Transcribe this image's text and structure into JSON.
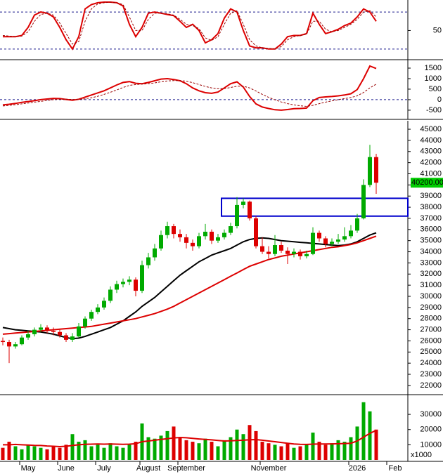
{
  "chart_data": [
    {
      "type": "line",
      "ylim": [
        5,
        96
      ],
      "yticks": [
        50
      ],
      "levels": [
        20,
        80
      ],
      "level_color": "#1a1a8c",
      "series": [
        {
          "color": "#dd0000",
          "dash": false,
          "values": [
            40,
            40,
            40,
            42,
            55,
            75,
            80,
            78,
            72,
            55,
            35,
            20,
            40,
            85,
            92,
            95,
            96,
            96,
            95,
            90,
            60,
            40,
            55,
            78,
            80,
            78,
            76,
            74,
            65,
            55,
            60,
            50,
            30,
            35,
            45,
            70,
            85,
            80,
            50,
            25,
            22,
            22,
            20,
            20,
            28,
            40,
            42,
            42,
            45,
            78,
            60,
            45,
            48,
            52,
            58,
            62,
            72,
            85,
            80,
            65
          ]
        },
        {
          "color": "#990000",
          "dash": true,
          "values": [
            42,
            41,
            40,
            41,
            48,
            65,
            76,
            78,
            75,
            62,
            45,
            28,
            32,
            65,
            85,
            93,
            95,
            96,
            95,
            92,
            72,
            50,
            50,
            68,
            78,
            78,
            77,
            75,
            68,
            60,
            58,
            53,
            38,
            34,
            40,
            60,
            78,
            82,
            60,
            35,
            25,
            22,
            21,
            20,
            24,
            35,
            40,
            42,
            44,
            65,
            65,
            52,
            48,
            50,
            55,
            60,
            68,
            80,
            82,
            72
          ]
        }
      ]
    },
    {
      "type": "line",
      "ylim": [
        -870,
        1800
      ],
      "yticks": [
        1500,
        1000,
        500,
        0,
        -500
      ],
      "levels": [
        0
      ],
      "level_color": "#1a1a8c",
      "series": [
        {
          "color": "#dd0000",
          "dash": false,
          "values": [
            -250,
            -220,
            -180,
            -130,
            -90,
            -50,
            0,
            30,
            60,
            50,
            10,
            -30,
            20,
            120,
            220,
            320,
            420,
            560,
            700,
            820,
            860,
            780,
            760,
            820,
            900,
            980,
            1000,
            960,
            900,
            760,
            560,
            420,
            330,
            300,
            360,
            560,
            760,
            850,
            600,
            150,
            -200,
            -350,
            -420,
            -480,
            -500,
            -470,
            -430,
            -420,
            -400,
            -50,
            100,
            130,
            150,
            180,
            220,
            280,
            480,
            1000,
            1600,
            1480
          ]
        },
        {
          "color": "#990000",
          "dash": true,
          "values": [
            -300,
            -270,
            -240,
            -200,
            -160,
            -120,
            -80,
            -40,
            0,
            20,
            20,
            10,
            10,
            40,
            90,
            160,
            250,
            350,
            460,
            580,
            680,
            720,
            740,
            760,
            800,
            850,
            890,
            910,
            910,
            880,
            810,
            720,
            630,
            560,
            520,
            530,
            580,
            640,
            640,
            560,
            410,
            250,
            110,
            -10,
            -110,
            -190,
            -250,
            -290,
            -320,
            -270,
            -190,
            -120,
            -60,
            0,
            50,
            100,
            180,
            340,
            560,
            740
          ]
        }
      ]
    },
    {
      "type": "candlestick",
      "ylim": [
        21300,
        45570
      ],
      "yticks": [
        22000,
        23000,
        24000,
        25000,
        26000,
        27000,
        28000,
        29000,
        30000,
        31000,
        32000,
        33000,
        34000,
        35000,
        36000,
        37000,
        38000,
        39000,
        40000,
        41000,
        42000,
        43000,
        44000,
        45000
      ],
      "up_color": "#00aa00",
      "down_color": "#dd0000",
      "open": [
        26000,
        25900,
        25500,
        25700,
        26300,
        26600,
        27000,
        27200,
        26900,
        26800,
        26500,
        26100,
        26400,
        27300,
        28000,
        28600,
        29000,
        29600,
        30600,
        31100,
        31300,
        31500,
        30500,
        32800,
        33500,
        34300,
        35500,
        36300,
        35600,
        35300,
        34800,
        34500,
        35400,
        35800,
        35000,
        35300,
        35700,
        36300,
        38200,
        38500,
        37000,
        34500,
        34000,
        33800,
        34600,
        34100,
        33800,
        34000,
        33600,
        33800,
        35700,
        35200,
        34700,
        34900,
        35100,
        35400,
        35900,
        37000,
        40000,
        42500
      ],
      "high": [
        26300,
        26100,
        25900,
        26500,
        26900,
        27200,
        27500,
        27400,
        27200,
        27000,
        26700,
        26700,
        27600,
        28200,
        28800,
        29300,
        29900,
        30900,
        31400,
        31600,
        31800,
        31700,
        33200,
        33900,
        34700,
        35900,
        36700,
        36500,
        36000,
        35600,
        35100,
        35700,
        36500,
        36000,
        35600,
        36000,
        36600,
        38900,
        38800,
        38600,
        37200,
        35300,
        34500,
        35500,
        34900,
        34400,
        34300,
        34200,
        34100,
        36200,
        35900,
        35400,
        35200,
        35600,
        36200,
        36400,
        37400,
        40500,
        43600,
        42800
      ],
      "low": [
        25600,
        24000,
        25300,
        25600,
        26100,
        26400,
        26800,
        26700,
        26500,
        26300,
        25900,
        25900,
        26300,
        27100,
        27800,
        28400,
        28800,
        29400,
        30300,
        30800,
        31000,
        30000,
        30300,
        32500,
        33200,
        34100,
        35200,
        35200,
        34900,
        34300,
        34100,
        34300,
        35100,
        34700,
        34800,
        35100,
        35500,
        36100,
        37900,
        36800,
        34300,
        33800,
        33400,
        33600,
        33900,
        32900,
        33500,
        33300,
        33400,
        33700,
        34900,
        34400,
        34500,
        34700,
        34900,
        35200,
        35700,
        36900,
        39800,
        39200
      ],
      "close": [
        25900,
        25500,
        25700,
        26300,
        26600,
        27000,
        27200,
        26900,
        26800,
        26500,
        26100,
        26400,
        27300,
        28000,
        28600,
        29000,
        29600,
        30600,
        31100,
        31300,
        31500,
        30500,
        32800,
        33500,
        34300,
        35500,
        36300,
        35600,
        35300,
        34800,
        34500,
        35400,
        35800,
        35000,
        35300,
        35700,
        36300,
        38200,
        38500,
        37000,
        34500,
        34000,
        33800,
        34600,
        34100,
        33800,
        34000,
        33600,
        33800,
        35700,
        35200,
        34700,
        34900,
        35100,
        35400,
        35900,
        37000,
        40000,
        42500,
        40200
      ],
      "lines": [
        {
          "color": "#000000",
          "values": [
            27200,
            27100,
            27000,
            26950,
            26900,
            26850,
            26800,
            26700,
            26600,
            26450,
            26300,
            26200,
            26250,
            26400,
            26600,
            26800,
            27000,
            27200,
            27500,
            27800,
            28200,
            28600,
            29100,
            29500,
            29900,
            30400,
            30900,
            31400,
            31900,
            32300,
            32700,
            33100,
            33400,
            33700,
            33900,
            34100,
            34300,
            34600,
            34900,
            35100,
            35200,
            35250,
            35200,
            35100,
            35000,
            34950,
            34900,
            34850,
            34800,
            34750,
            34700,
            34650,
            34600,
            34550,
            34600,
            34700,
            34900,
            35200,
            35500,
            35700
          ]
        },
        {
          "color": "#dd0000",
          "values": [
            26600,
            26650,
            26700,
            26750,
            26800,
            26850,
            26900,
            26950,
            27000,
            27050,
            27100,
            27150,
            27200,
            27250,
            27300,
            27400,
            27500,
            27600,
            27700,
            27800,
            27900,
            28000,
            28150,
            28300,
            28450,
            28650,
            28850,
            29100,
            29400,
            29700,
            30000,
            30300,
            30600,
            30900,
            31200,
            31500,
            31800,
            32100,
            32400,
            32700,
            32900,
            33100,
            33300,
            33450,
            33600,
            33700,
            33800,
            33900,
            34000,
            34100,
            34200,
            34300,
            34400,
            34450,
            34550,
            34650,
            34800,
            35000,
            35200,
            35400
          ]
        }
      ],
      "zone": {
        "low": 37200,
        "high": 38800,
        "start_index": 35,
        "color": "#0000cc"
      },
      "last_price": {
        "value": 40200,
        "label": "40200.00",
        "color": "#00cc00"
      }
    },
    {
      "type": "bar",
      "ylim": [
        0,
        41600
      ],
      "yticks": [
        10000,
        20000,
        30000
      ],
      "unit_label": "x1000",
      "categories": [
        null,
        null,
        null,
        null,
        "May",
        null,
        null,
        null,
        null,
        null,
        "June",
        null,
        null,
        null,
        null,
        null,
        "July",
        null,
        null,
        null,
        null,
        null,
        null,
        "August",
        null,
        null,
        null,
        null,
        null,
        "September",
        null,
        null,
        null,
        null,
        null,
        null,
        null,
        null,
        null,
        null,
        null,
        null,
        "November",
        null,
        null,
        null,
        null,
        null,
        null,
        null,
        null,
        null,
        null,
        null,
        null,
        null,
        "2026",
        null,
        null,
        null,
        null,
        null,
        "Feb"
      ],
      "up_color": "#00aa00",
      "down_color": "#dd0000",
      "values": [
        8000,
        12000,
        9000,
        7000,
        10000,
        9000,
        8000,
        7000,
        9000,
        8000,
        10000,
        17000,
        12000,
        13000,
        9000,
        10000,
        8000,
        11000,
        9000,
        8000,
        10000,
        12000,
        24000,
        15000,
        14000,
        16000,
        19000,
        22000,
        15000,
        13000,
        12000,
        11000,
        14000,
        12000,
        9000,
        13000,
        15000,
        20000,
        17000,
        23000,
        19000,
        12000,
        11000,
        10000,
        9000,
        11000,
        8000,
        9000,
        10000,
        18000,
        12000,
        10000,
        11000,
        13000,
        12000,
        15000,
        22000,
        38000,
        32000,
        20000,
        null,
        null,
        null
      ],
      "lines": [
        {
          "color": "#dd0000",
          "values": [
            10000,
            10000,
            10200,
            10000,
            9800,
            9600,
            9500,
            9200,
            9000,
            8800,
            9000,
            9500,
            10000,
            10300,
            10400,
            10500,
            10400,
            10500,
            10400,
            10300,
            10400,
            10700,
            12000,
            12500,
            13000,
            13500,
            14000,
            14500,
            14800,
            14600,
            14200,
            13800,
            13500,
            13200,
            12800,
            12500,
            12600,
            12800,
            13000,
            13300,
            13400,
            13000,
            12500,
            12000,
            11500,
            11000,
            10500,
            10300,
            10200,
            10400,
            10500,
            10500,
            10600,
            10700,
            10800,
            11000,
            12500,
            15000,
            17500,
            19500,
            null,
            null,
            null
          ]
        }
      ]
    }
  ]
}
